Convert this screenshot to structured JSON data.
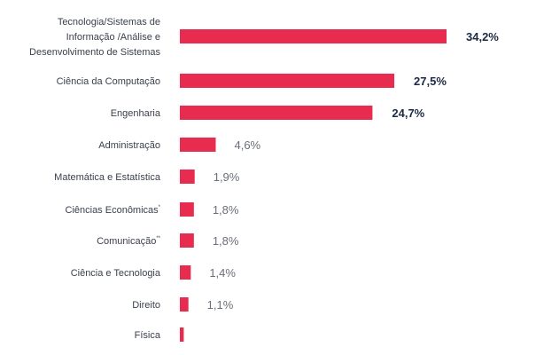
{
  "colors": {
    "bar": "#e82c4f",
    "label": "#3a3f4c",
    "value_bold": "#1d2a44",
    "value_light": "#6b6f78"
  },
  "chart_data": {
    "type": "bar",
    "orientation": "horizontal",
    "title": "",
    "xlabel": "",
    "ylabel": "",
    "xlim": [
      0,
      34.2
    ],
    "grid": false,
    "unit": "%",
    "categories": [
      [
        "Tecnologia/Sistemas de",
        "Informação /Análise e",
        "Desenvolvimento de Sistemas"
      ],
      [
        "Ciência da Computação"
      ],
      [
        "Engenharia"
      ],
      [
        "Administração"
      ],
      [
        "Matemática e Estatística"
      ],
      [
        "Ciências Econômicas"
      ],
      [
        "Comunicação"
      ],
      [
        "Ciência e Tecnologia"
      ],
      [
        "Direito"
      ],
      [
        "Física"
      ]
    ],
    "superscripts": [
      "",
      "",
      "",
      "",
      "",
      "*",
      "**",
      "",
      "",
      ""
    ],
    "values": [
      34.2,
      27.5,
      24.7,
      4.6,
      1.9,
      1.8,
      1.8,
      1.4,
      1.1,
      0.5
    ],
    "value_labels": [
      "34,2%",
      "27,5%",
      "24,7%",
      "4,6%",
      "1,9%",
      "1,8%",
      "1,8%",
      "1,4%",
      "1,1%",
      ""
    ],
    "highlighted": [
      true,
      true,
      true,
      false,
      false,
      false,
      false,
      false,
      false,
      false
    ]
  }
}
